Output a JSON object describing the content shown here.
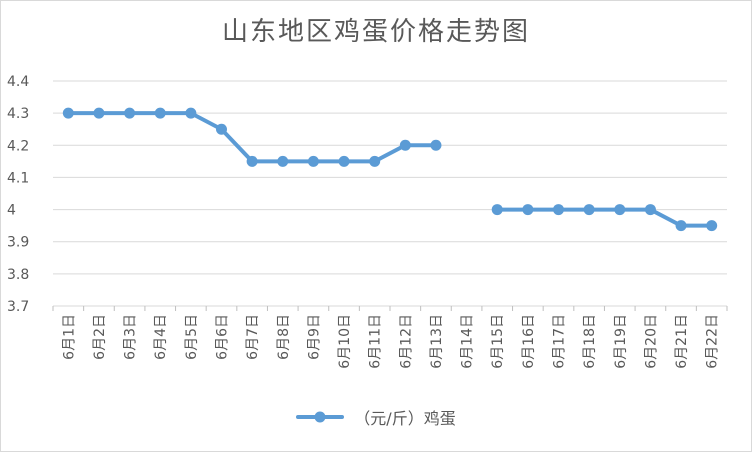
{
  "chart_data": {
    "type": "line",
    "title": "山东地区鸡蛋价格走势图",
    "categories": [
      "6月1日",
      "6月2日",
      "6月3日",
      "6月4日",
      "6月5日",
      "6月6日",
      "6月7日",
      "6月8日",
      "6月9日",
      "6月10日",
      "6月11日",
      "6月12日",
      "6月13日",
      "6月14日",
      "6月15日",
      "6月16日",
      "6月17日",
      "6月18日",
      "6月19日",
      "6月20日",
      "6月21日",
      "6月22日"
    ],
    "series": [
      {
        "name": "（元/斤）鸡蛋",
        "values": [
          4.3,
          4.3,
          4.3,
          4.3,
          4.3,
          4.25,
          4.15,
          4.15,
          4.15,
          4.15,
          4.15,
          4.2,
          4.2,
          null,
          4.0,
          4.0,
          4.0,
          4.0,
          4.0,
          4.0,
          3.95,
          3.95
        ],
        "color": "#5b9bd5"
      }
    ],
    "ylim": [
      3.7,
      4.4
    ],
    "yticks": [
      "3.7",
      "3.8",
      "3.9",
      "4",
      "4.1",
      "4.2",
      "4.3",
      "4.4"
    ],
    "grid": true,
    "legend_position": "bottom"
  }
}
